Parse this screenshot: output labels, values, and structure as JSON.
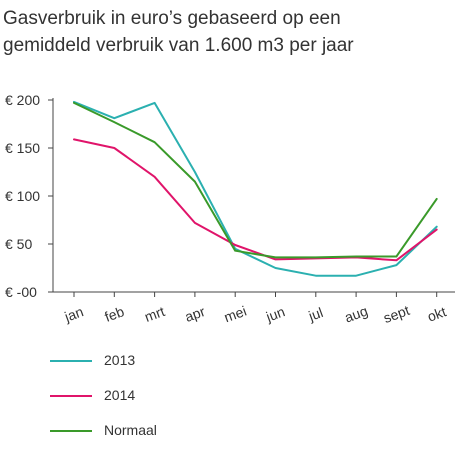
{
  "chart_data": {
    "type": "line",
    "title_lines": [
      "Gasverbruik in euro’s gebaseerd op een",
      "gemiddeld verbruik van 1.600 m3 per jaar"
    ],
    "categories": [
      "jan",
      "feb",
      "mrt",
      "apr",
      "mei",
      "jun",
      "jul",
      "aug",
      "sept",
      "okt"
    ],
    "ylim": [
      0,
      200
    ],
    "yticks": [
      0,
      50,
      100,
      150,
      200
    ],
    "ytick_labels": [
      "€ -00",
      "€ 50",
      "€ 100",
      "€ 150",
      "€ 200"
    ],
    "grid": false,
    "legend_position": "bottom-left",
    "series": [
      {
        "name": "2013",
        "color": "#2bb0b0",
        "values": [
          198,
          181,
          197,
          125,
          45,
          25,
          17,
          17,
          28,
          68
        ]
      },
      {
        "name": "2014",
        "color": "#e0146a",
        "values": [
          159,
          150,
          120,
          72,
          49,
          34,
          35,
          36,
          33,
          65
        ]
      },
      {
        "name": "Normaal",
        "color": "#3a9a2a",
        "values": [
          197,
          177,
          156,
          115,
          43,
          36,
          36,
          37,
          37,
          97
        ]
      }
    ]
  }
}
